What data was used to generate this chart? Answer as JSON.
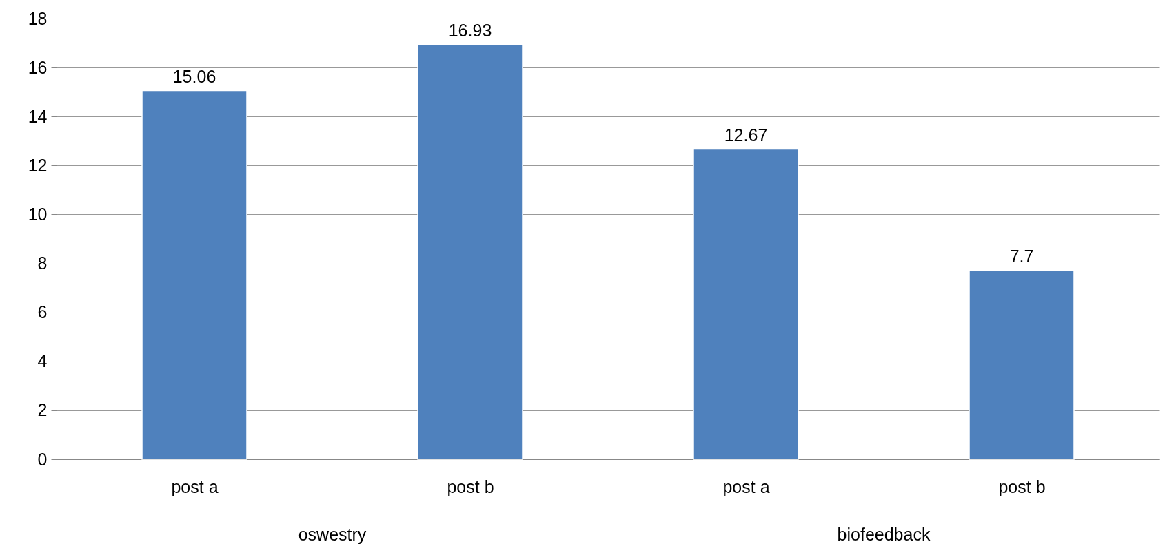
{
  "chart_data": {
    "type": "bar",
    "categories": [
      "post a",
      "post b",
      "post a",
      "post b"
    ],
    "values": [
      15.06,
      16.93,
      12.67,
      7.7
    ],
    "color": "#4f81bd",
    "annotations": [
      "oswestry",
      "biofeedback"
    ],
    "ylim": [
      0,
      18
    ],
    "yticks": [
      0,
      2,
      4,
      6,
      8,
      10,
      12,
      14,
      16,
      18
    ],
    "grid": "y",
    "data_labels": true
  }
}
